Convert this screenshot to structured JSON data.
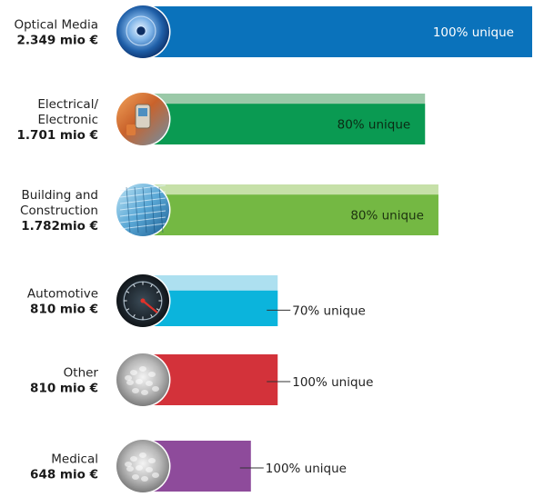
{
  "chart_data": {
    "type": "bar",
    "orientation": "horizontal",
    "unit": "mio €",
    "xlim": [
      0,
      2349
    ],
    "categories": [
      {
        "name_lines": [
          "Optical Media"
        ],
        "value_label": "2.349 mio €",
        "value": 2349,
        "unique_pct": 100,
        "unique_label": "100% unique",
        "color": "#0a72bb",
        "light_color": "#0a72bb",
        "label_placement": "inside",
        "label_color": "#ffffff",
        "icon": "cd-disc-photo-icon"
      },
      {
        "name_lines": [
          "Electrical/",
          "Electronic"
        ],
        "value_label": "1.701 mio €",
        "value": 1701,
        "unique_pct": 80,
        "unique_label": "80% unique",
        "color": "#0a9a52",
        "light_color": "#9bc9a8",
        "label_placement": "inside",
        "label_color": "#0b2a14",
        "icon": "mobile-phone-photo-icon"
      },
      {
        "name_lines": [
          "Building and",
          "Construction"
        ],
        "value_label": "1.782mio €",
        "value": 1782,
        "unique_pct": 80,
        "unique_label": "80% unique",
        "color": "#74b843",
        "light_color": "#c6e0a8",
        "label_placement": "inside",
        "label_color": "#1d3310",
        "icon": "glass-building-photo-icon"
      },
      {
        "name_lines": [
          "Automotive"
        ],
        "value_label": "810 mio €",
        "value": 810,
        "unique_pct": 70,
        "unique_label": "70% unique",
        "color": "#0bb4dc",
        "light_color": "#ade0f0",
        "label_placement": "outside",
        "label_color": "#222222",
        "icon": "speedometer-photo-icon"
      },
      {
        "name_lines": [
          "Other"
        ],
        "value_label": "810 mio €",
        "value": 810,
        "unique_pct": 100,
        "unique_label": "100% unique",
        "color": "#d3323a",
        "light_color": "#d3323a",
        "label_placement": "outside",
        "label_color": "#222222",
        "icon": "plastic-pellets-photo-icon"
      },
      {
        "name_lines": [
          "Medical"
        ],
        "value_label": "648 mio €",
        "value": 648,
        "unique_pct": 100,
        "unique_label": "100% unique",
        "color": "#8e4b9b",
        "light_color": "#8e4b9b",
        "label_placement": "outside",
        "label_color": "#222222",
        "icon": "plastic-pellets-photo-icon"
      }
    ]
  }
}
